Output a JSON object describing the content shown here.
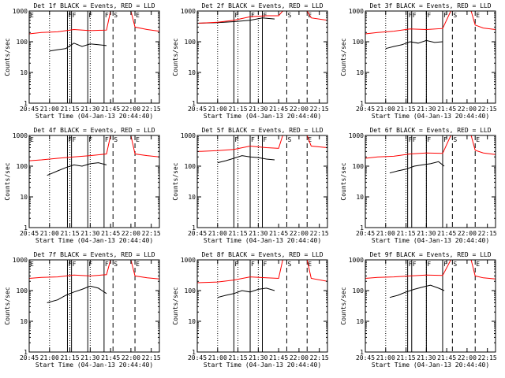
{
  "chart_data": [
    {
      "type": "line",
      "title": "Det 1f BLACK = Events, RED = LLD",
      "xlabel": "Start Time (04-Jan-13 20:44:40)",
      "ylabel": "Counts/sec",
      "yscale": "log",
      "ylim": [
        1,
        1000
      ],
      "y_ticks": [
        "1",
        "10",
        "100",
        "1000"
      ],
      "xlim": [
        20.75,
        22.35
      ],
      "x_ticks": [
        "20:45",
        "21:00",
        "21:15",
        "21:30",
        "21:45",
        "22:00",
        "22:15"
      ],
      "series": [
        {
          "color": "#000000",
          "x": [
            21.0,
            21.1,
            21.2,
            21.3,
            21.4,
            21.5,
            21.6,
            21.7
          ],
          "values": [
            50,
            55,
            60,
            90,
            70,
            85,
            80,
            75
          ]
        },
        {
          "color": "#ff0000",
          "x": [
            20.75,
            20.9,
            21.1,
            21.3,
            21.5,
            21.7,
            21.75,
            21.78,
            22.0,
            22.05,
            22.2,
            22.35
          ],
          "values": [
            180,
            200,
            210,
            250,
            230,
            240,
            1000,
            1000,
            1000,
            300,
            250,
            220
          ]
        }
      ],
      "markers": [
        {
          "label": "E",
          "x": 20.75,
          "style": "none"
        },
        {
          "label": "F",
          "x": 21.22,
          "style": "solid"
        },
        {
          "label": "F",
          "x": 21.27,
          "style": "solid"
        },
        {
          "label": "F",
          "x": 21.47,
          "style": "solid"
        },
        {
          "label": "F",
          "x": 21.67,
          "style": "solid"
        },
        {
          "label": "S",
          "x": 21.78,
          "style": "dashed"
        },
        {
          "label": "E",
          "x": 22.05,
          "style": "dashed"
        }
      ],
      "dotted_x": [
        21.0,
        21.25,
        21.5
      ]
    },
    {
      "type": "line",
      "title": "Det 2f BLACK = Events, RED = LLD",
      "xlabel": "Start Time (04-Jan-13 20:44:40)",
      "ylabel": "Counts/sec",
      "yscale": "log",
      "ylim": [
        1,
        1000
      ],
      "y_ticks": [
        "1",
        "10",
        "100",
        "1000"
      ],
      "xlim": [
        20.75,
        22.35
      ],
      "x_ticks": [
        "20:45",
        "21:00",
        "21:15",
        "21:30",
        "21:45",
        "22:00",
        "22:15"
      ],
      "series": [
        {
          "color": "#000000",
          "x": [
            20.75,
            21.0,
            21.2,
            21.4,
            21.55,
            21.7
          ],
          "values": [
            400,
            420,
            450,
            500,
            600,
            550
          ]
        },
        {
          "color": "#ff0000",
          "x": [
            20.75,
            21.0,
            21.2,
            21.4,
            21.6,
            21.75,
            21.8,
            22.1,
            22.15,
            22.35
          ],
          "values": [
            400,
            430,
            500,
            650,
            700,
            700,
            1000,
            1000,
            600,
            500
          ]
        }
      ],
      "markers": [
        {
          "label": "F",
          "x": 21.2,
          "style": "solid"
        },
        {
          "label": "F",
          "x": 21.4,
          "style": "solid"
        },
        {
          "label": "F",
          "x": 21.55,
          "style": "solid"
        },
        {
          "label": "S",
          "x": 21.85,
          "style": "dashed"
        },
        {
          "label": "E",
          "x": 22.1,
          "style": "dashed"
        }
      ],
      "dotted_x": [
        21.0,
        21.25,
        21.5
      ]
    },
    {
      "type": "line",
      "title": "Det 3f BLACK = Events, RED = LLD",
      "xlabel": "Start Time (04-Jan-13 20:44:40)",
      "ylabel": "Counts/sec",
      "yscale": "log",
      "ylim": [
        1,
        1000
      ],
      "y_ticks": [
        "1",
        "10",
        "100",
        "1000"
      ],
      "xlim": [
        20.75,
        22.35
      ],
      "x_ticks": [
        "20:45",
        "21:00",
        "21:15",
        "21:30",
        "21:45",
        "22:00",
        "22:15"
      ],
      "series": [
        {
          "color": "#000000",
          "x": [
            21.0,
            21.1,
            21.2,
            21.3,
            21.4,
            21.5,
            21.6,
            21.7
          ],
          "values": [
            60,
            70,
            80,
            100,
            90,
            110,
            95,
            100
          ]
        },
        {
          "color": "#ff0000",
          "x": [
            20.75,
            20.9,
            21.1,
            21.3,
            21.5,
            21.7,
            21.8,
            21.82,
            22.05,
            22.1,
            22.2,
            22.35
          ],
          "values": [
            180,
            200,
            220,
            260,
            250,
            270,
            1000,
            1000,
            1000,
            350,
            280,
            250
          ]
        }
      ],
      "markers": [
        {
          "label": "F",
          "x": 21.27,
          "style": "solid"
        },
        {
          "label": "F",
          "x": 21.32,
          "style": "solid"
        },
        {
          "label": "F",
          "x": 21.5,
          "style": "solid"
        },
        {
          "label": "F",
          "x": 21.7,
          "style": "solid"
        },
        {
          "label": "S",
          "x": 21.82,
          "style": "dashed"
        },
        {
          "label": "E",
          "x": 22.1,
          "style": "dashed"
        }
      ],
      "dotted_x": [
        21.0,
        21.25,
        21.5
      ]
    },
    {
      "type": "line",
      "title": "Det 4f BLACK = Events, RED = LLD",
      "xlabel": "Start Time (04-Jan-13 20:44:40)",
      "ylabel": "Counts/sec",
      "yscale": "log",
      "ylim": [
        1,
        1000
      ],
      "y_ticks": [
        "1",
        "10",
        "100",
        "1000"
      ],
      "xlim": [
        20.75,
        22.35
      ],
      "x_ticks": [
        "20:45",
        "21:00",
        "21:15",
        "21:30",
        "21:45",
        "22:00",
        "22:15"
      ],
      "series": [
        {
          "color": "#000000",
          "x": [
            20.97,
            21.1,
            21.2,
            21.3,
            21.4,
            21.5,
            21.6,
            21.7
          ],
          "values": [
            50,
            70,
            90,
            110,
            100,
            120,
            130,
            110
          ]
        },
        {
          "color": "#ff0000",
          "x": [
            20.75,
            20.9,
            21.1,
            21.3,
            21.5,
            21.7,
            21.75,
            21.78,
            22.0,
            22.05,
            22.2,
            22.35
          ],
          "values": [
            150,
            160,
            180,
            200,
            220,
            250,
            1000,
            1000,
            1000,
            250,
            220,
            200
          ]
        }
      ],
      "markers": [
        {
          "label": "E",
          "x": 20.75,
          "style": "none"
        },
        {
          "label": "F",
          "x": 21.22,
          "style": "solid"
        },
        {
          "label": "F",
          "x": 21.27,
          "style": "solid"
        },
        {
          "label": "F",
          "x": 21.47,
          "style": "solid"
        },
        {
          "label": "F",
          "x": 21.67,
          "style": "solid"
        },
        {
          "label": "S",
          "x": 21.78,
          "style": "dashed"
        },
        {
          "label": "E",
          "x": 22.05,
          "style": "dashed"
        }
      ],
      "dotted_x": [
        21.0,
        21.25,
        21.5
      ]
    },
    {
      "type": "line",
      "title": "Det 5f BLACK = Events, RED = LLD",
      "xlabel": "Start Time (04-Jan-13 20:44:40)",
      "ylabel": "Counts/sec",
      "yscale": "log",
      "ylim": [
        1,
        1000
      ],
      "y_ticks": [
        "1",
        "10",
        "100",
        "1000"
      ],
      "xlim": [
        20.75,
        22.35
      ],
      "x_ticks": [
        "20:45",
        "21:00",
        "21:15",
        "21:30",
        "21:45",
        "22:00",
        "22:15"
      ],
      "series": [
        {
          "color": "#000000",
          "x": [
            21.0,
            21.1,
            21.2,
            21.3,
            21.4,
            21.5,
            21.6,
            21.7
          ],
          "values": [
            130,
            150,
            180,
            220,
            200,
            190,
            170,
            160
          ]
        },
        {
          "color": "#ff0000",
          "x": [
            20.75,
            21.0,
            21.2,
            21.4,
            21.6,
            21.75,
            21.8,
            22.1,
            22.15,
            22.35
          ],
          "values": [
            300,
            320,
            350,
            450,
            400,
            380,
            1000,
            1000,
            450,
            400
          ]
        }
      ],
      "markers": [
        {
          "label": "F",
          "x": 21.2,
          "style": "solid"
        },
        {
          "label": "F",
          "x": 21.4,
          "style": "solid"
        },
        {
          "label": "F",
          "x": 21.55,
          "style": "solid"
        },
        {
          "label": "S",
          "x": 21.85,
          "style": "dashed"
        },
        {
          "label": "E",
          "x": 22.1,
          "style": "dashed"
        }
      ],
      "dotted_x": [
        21.0,
        21.25,
        21.5
      ]
    },
    {
      "type": "line",
      "title": "Det 6f BLACK = Events, RED = LLD",
      "xlabel": "Start Time (04-Jan-13 20:44:40)",
      "ylabel": "Counts/sec",
      "yscale": "log",
      "ylim": [
        1,
        1000
      ],
      "y_ticks": [
        "1",
        "10",
        "100",
        "1000"
      ],
      "xlim": [
        20.75,
        22.35
      ],
      "x_ticks": [
        "20:45",
        "21:00",
        "21:15",
        "21:30",
        "21:45",
        "22:00",
        "22:15"
      ],
      "series": [
        {
          "color": "#000000",
          "x": [
            21.05,
            21.15,
            21.25,
            21.35,
            21.45,
            21.55,
            21.65,
            21.72
          ],
          "values": [
            60,
            70,
            80,
            100,
            110,
            120,
            140,
            100
          ]
        },
        {
          "color": "#ff0000",
          "x": [
            20.75,
            20.9,
            21.1,
            21.3,
            21.5,
            21.7,
            21.8,
            21.82,
            22.05,
            22.1,
            22.2,
            22.35
          ],
          "values": [
            180,
            200,
            210,
            250,
            270,
            260,
            1000,
            1000,
            1000,
            330,
            270,
            240
          ]
        }
      ],
      "markers": [
        {
          "label": "F",
          "x": 21.27,
          "style": "solid"
        },
        {
          "label": "F",
          "x": 21.32,
          "style": "solid"
        },
        {
          "label": "F",
          "x": 21.5,
          "style": "solid"
        },
        {
          "label": "F",
          "x": 21.7,
          "style": "solid"
        },
        {
          "label": "S",
          "x": 21.82,
          "style": "dashed"
        },
        {
          "label": "E",
          "x": 22.1,
          "style": "dashed"
        }
      ],
      "dotted_x": [
        21.0,
        21.25,
        21.5
      ]
    },
    {
      "type": "line",
      "title": "Det 7f BLACK = Events, RED = LLD",
      "xlabel": "Start Time (04-Jan-13 20:44:40)",
      "ylabel": "Counts/sec",
      "yscale": "log",
      "ylim": [
        1,
        1000
      ],
      "y_ticks": [
        "1",
        "10",
        "100",
        "1000"
      ],
      "xlim": [
        20.75,
        22.35
      ],
      "x_ticks": [
        "20:45",
        "21:00",
        "21:15",
        "21:30",
        "21:45",
        "22:00",
        "22:15"
      ],
      "series": [
        {
          "color": "#000000",
          "x": [
            20.97,
            21.1,
            21.2,
            21.3,
            21.4,
            21.5,
            21.6,
            21.7
          ],
          "values": [
            40,
            50,
            70,
            90,
            110,
            140,
            120,
            80
          ]
        },
        {
          "color": "#ff0000",
          "x": [
            20.75,
            20.9,
            21.1,
            21.3,
            21.5,
            21.7,
            21.75,
            21.78,
            22.0,
            22.05,
            22.2,
            22.35
          ],
          "values": [
            250,
            270,
            280,
            320,
            300,
            330,
            1000,
            1000,
            1000,
            300,
            260,
            240
          ]
        }
      ],
      "markers": [
        {
          "label": "E",
          "x": 20.75,
          "style": "none"
        },
        {
          "label": "F",
          "x": 21.22,
          "style": "solid"
        },
        {
          "label": "F",
          "x": 21.27,
          "style": "solid"
        },
        {
          "label": "F",
          "x": 21.47,
          "style": "solid"
        },
        {
          "label": "F",
          "x": 21.67,
          "style": "solid"
        },
        {
          "label": "S",
          "x": 21.78,
          "style": "dashed"
        },
        {
          "label": "E",
          "x": 22.05,
          "style": "dashed"
        }
      ],
      "dotted_x": [
        21.0,
        21.25,
        21.5
      ]
    },
    {
      "type": "line",
      "title": "Det 8f BLACK = Events, RED = LLD",
      "xlabel": "Start Time (04-Jan-13 20:44:40)",
      "ylabel": "Counts/sec",
      "yscale": "log",
      "ylim": [
        1,
        1000
      ],
      "y_ticks": [
        "1",
        "10",
        "100",
        "1000"
      ],
      "xlim": [
        20.75,
        22.35
      ],
      "x_ticks": [
        "20:45",
        "21:00",
        "21:15",
        "21:30",
        "21:45",
        "22:00",
        "22:15"
      ],
      "series": [
        {
          "color": "#000000",
          "x": [
            21.0,
            21.1,
            21.2,
            21.3,
            21.4,
            21.5,
            21.6,
            21.7
          ],
          "values": [
            60,
            70,
            80,
            100,
            90,
            110,
            120,
            100
          ]
        },
        {
          "color": "#ff0000",
          "x": [
            20.75,
            21.0,
            21.2,
            21.4,
            21.6,
            21.75,
            21.8,
            22.1,
            22.15,
            22.35
          ],
          "values": [
            180,
            190,
            220,
            280,
            260,
            250,
            1000,
            1000,
            250,
            200
          ]
        }
      ],
      "markers": [
        {
          "label": "F",
          "x": 21.2,
          "style": "solid"
        },
        {
          "label": "F",
          "x": 21.4,
          "style": "solid"
        },
        {
          "label": "F",
          "x": 21.55,
          "style": "solid"
        },
        {
          "label": "S",
          "x": 21.85,
          "style": "dashed"
        },
        {
          "label": "E",
          "x": 22.1,
          "style": "dashed"
        }
      ],
      "dotted_x": [
        21.0,
        21.25,
        21.5
      ]
    },
    {
      "type": "line",
      "title": "Det 9f BLACK = Events, RED = LLD",
      "xlabel": "Start Time (04-Jan-13 20:44:40)",
      "ylabel": "Counts/sec",
      "yscale": "log",
      "ylim": [
        1,
        1000
      ],
      "y_ticks": [
        "1",
        "10",
        "100",
        "1000"
      ],
      "xlim": [
        20.75,
        22.35
      ],
      "x_ticks": [
        "20:45",
        "21:00",
        "21:15",
        "21:30",
        "21:45",
        "22:00",
        "22:15"
      ],
      "series": [
        {
          "color": "#000000",
          "x": [
            21.05,
            21.15,
            21.25,
            21.35,
            21.45,
            21.55,
            21.65,
            21.72
          ],
          "values": [
            60,
            70,
            90,
            110,
            130,
            150,
            120,
            100
          ]
        },
        {
          "color": "#ff0000",
          "x": [
            20.75,
            20.9,
            21.1,
            21.3,
            21.5,
            21.7,
            21.8,
            21.82,
            22.05,
            22.1,
            22.2,
            22.35
          ],
          "values": [
            250,
            270,
            280,
            300,
            320,
            310,
            1000,
            1000,
            1000,
            300,
            260,
            240
          ]
        }
      ],
      "markers": [
        {
          "label": "F",
          "x": 21.27,
          "style": "solid"
        },
        {
          "label": "F",
          "x": 21.32,
          "style": "solid"
        },
        {
          "label": "F",
          "x": 21.5,
          "style": "solid"
        },
        {
          "label": "F",
          "x": 21.7,
          "style": "solid"
        },
        {
          "label": "S",
          "x": 21.82,
          "style": "dashed"
        },
        {
          "label": "E",
          "x": 22.1,
          "style": "dashed"
        }
      ],
      "dotted_x": [
        21.0,
        21.25,
        21.5
      ]
    }
  ]
}
